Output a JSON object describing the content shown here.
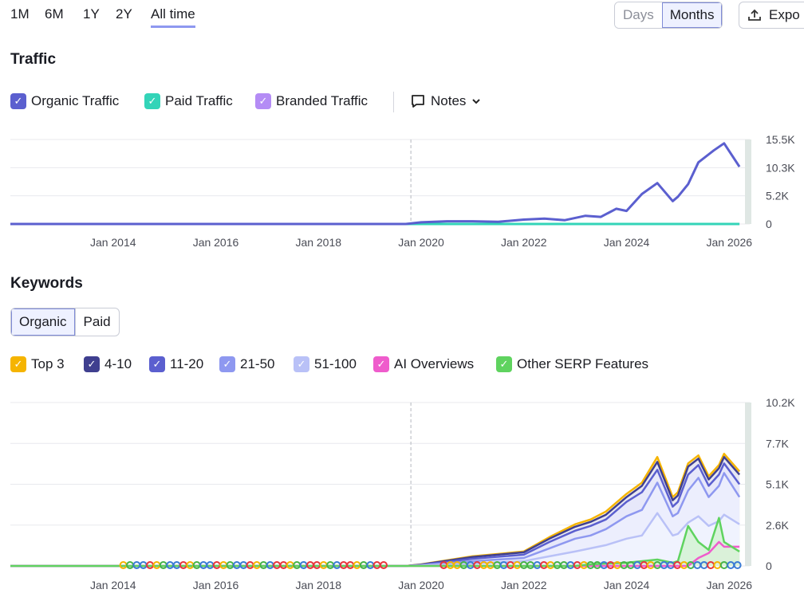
{
  "range_tabs": [
    "1M",
    "6M",
    "1Y",
    "2Y",
    "All time"
  ],
  "active_range": "All time",
  "granularity": {
    "days": "Days",
    "months": "Months",
    "active": "Months"
  },
  "export_label": "Expo",
  "traffic": {
    "title": "Traffic",
    "legend": [
      {
        "label": "Organic Traffic",
        "color": "#5b5fcf"
      },
      {
        "label": "Paid Traffic",
        "color": "#33d4b8"
      },
      {
        "label": "Branded Traffic",
        "color": "#b48cf5"
      }
    ],
    "notes_label": "Notes"
  },
  "keywords": {
    "title": "Keywords",
    "tabs": [
      "Organic",
      "Paid"
    ],
    "active_tab": "Organic",
    "legend": [
      {
        "label": "Top 3",
        "color": "#f5b400"
      },
      {
        "label": "4-10",
        "color": "#3f3f8f"
      },
      {
        "label": "11-20",
        "color": "#5b5fcf"
      },
      {
        "label": "21-50",
        "color": "#8e98f0"
      },
      {
        "label": "51-100",
        "color": "#b9c1f7"
      },
      {
        "label": "AI Overviews",
        "color": "#ef5ccc"
      },
      {
        "label": "Other SERP Features",
        "color": "#5fd35f"
      }
    ]
  },
  "chart_data": [
    {
      "type": "line",
      "x_tick_labels": [
        "Jan 2014",
        "Jan 2016",
        "Jan 2018",
        "Jan 2020",
        "Jan 2022",
        "Jan 2024",
        "Jan 2026"
      ],
      "y_tick_labels": [
        "15.5K",
        "10.3K",
        "5.2K",
        "0"
      ],
      "ylim": [
        0,
        15500
      ],
      "series": [
        {
          "name": "Organic Traffic",
          "color": "#5b5fcf",
          "x": [
            2012.0,
            2019.7,
            2020.0,
            2020.5,
            2021.0,
            2021.5,
            2022.0,
            2022.4,
            2022.8,
            2023.2,
            2023.5,
            2023.8,
            2024.0,
            2024.3,
            2024.6,
            2024.9,
            2025.0,
            2025.2,
            2025.4,
            2025.7,
            2025.9,
            2026.2
          ],
          "y": [
            0,
            0,
            300,
            500,
            500,
            400,
            800,
            1000,
            700,
            1500,
            1300,
            2800,
            2400,
            5500,
            7500,
            4200,
            5000,
            7300,
            11300,
            13500,
            14800,
            10500
          ]
        },
        {
          "name": "Paid Traffic",
          "color": "#33d4b8",
          "x": [
            2012.0,
            2026.2
          ],
          "y": [
            0,
            0
          ]
        },
        {
          "name": "Branded Traffic",
          "color": "#b48cf5",
          "x": [
            2012.0,
            2026.2
          ],
          "y": [
            0,
            0
          ]
        }
      ]
    },
    {
      "type": "area",
      "x_tick_labels": [
        "Jan 2014",
        "Jan 2016",
        "Jan 2018",
        "Jan 2020",
        "Jan 2022",
        "Jan 2024",
        "Jan 2026"
      ],
      "y_tick_labels": [
        "10.2K",
        "7.7K",
        "5.1K",
        "2.6K",
        "0"
      ],
      "ylim": [
        0,
        10200
      ],
      "x": [
        2012.0,
        2019.7,
        2020.0,
        2021.0,
        2022.0,
        2022.5,
        2023.0,
        2023.3,
        2023.6,
        2024.0,
        2024.3,
        2024.6,
        2024.9,
        2025.0,
        2025.2,
        2025.4,
        2025.6,
        2025.8,
        2025.9,
        2026.2
      ],
      "series": [
        {
          "name": "Top 3",
          "color": "#f5b400",
          "values": [
            0,
            0,
            100,
            600,
            900,
            1800,
            2600,
            2900,
            3400,
            4500,
            5200,
            6800,
            4300,
            4600,
            6400,
            6900,
            5600,
            6300,
            7000,
            5900
          ]
        },
        {
          "name": "4-10",
          "color": "#3f3f8f",
          "values": [
            0,
            0,
            90,
            560,
            850,
            1700,
            2450,
            2750,
            3200,
            4300,
            5000,
            6500,
            4100,
            4400,
            6200,
            6700,
            5400,
            6100,
            6800,
            5700
          ]
        },
        {
          "name": "11-20",
          "color": "#5b5fcf",
          "values": [
            0,
            0,
            70,
            450,
            700,
            1500,
            2200,
            2500,
            2900,
            4000,
            4600,
            6000,
            3700,
            4000,
            5700,
            6300,
            5000,
            5700,
            6400,
            5100
          ]
        },
        {
          "name": "21-50",
          "color": "#8e98f0",
          "values": [
            0,
            0,
            50,
            300,
            500,
            1100,
            1700,
            1900,
            2300,
            3100,
            3500,
            5200,
            3100,
            3300,
            4700,
            5500,
            4300,
            5000,
            5800,
            4300
          ]
        },
        {
          "name": "51-100",
          "color": "#b9c1f7",
          "values": [
            0,
            0,
            30,
            150,
            300,
            600,
            900,
            1100,
            1300,
            1700,
            1900,
            3300,
            1900,
            2000,
            2700,
            3100,
            2500,
            2800,
            3200,
            2600
          ]
        },
        {
          "name": "AI Overviews",
          "color": "#ef5ccc",
          "values": [
            0,
            0,
            0,
            0,
            0,
            0,
            0,
            0,
            0,
            0,
            0,
            0,
            0,
            0,
            0,
            500,
            800,
            1500,
            1200,
            1200
          ]
        },
        {
          "name": "Other SERP Features",
          "color": "#5fd35f",
          "values": [
            0,
            0,
            0,
            0,
            0,
            0,
            0,
            100,
            150,
            200,
            300,
            400,
            200,
            300,
            2500,
            1500,
            1000,
            3000,
            1500,
            900
          ]
        }
      ]
    }
  ]
}
